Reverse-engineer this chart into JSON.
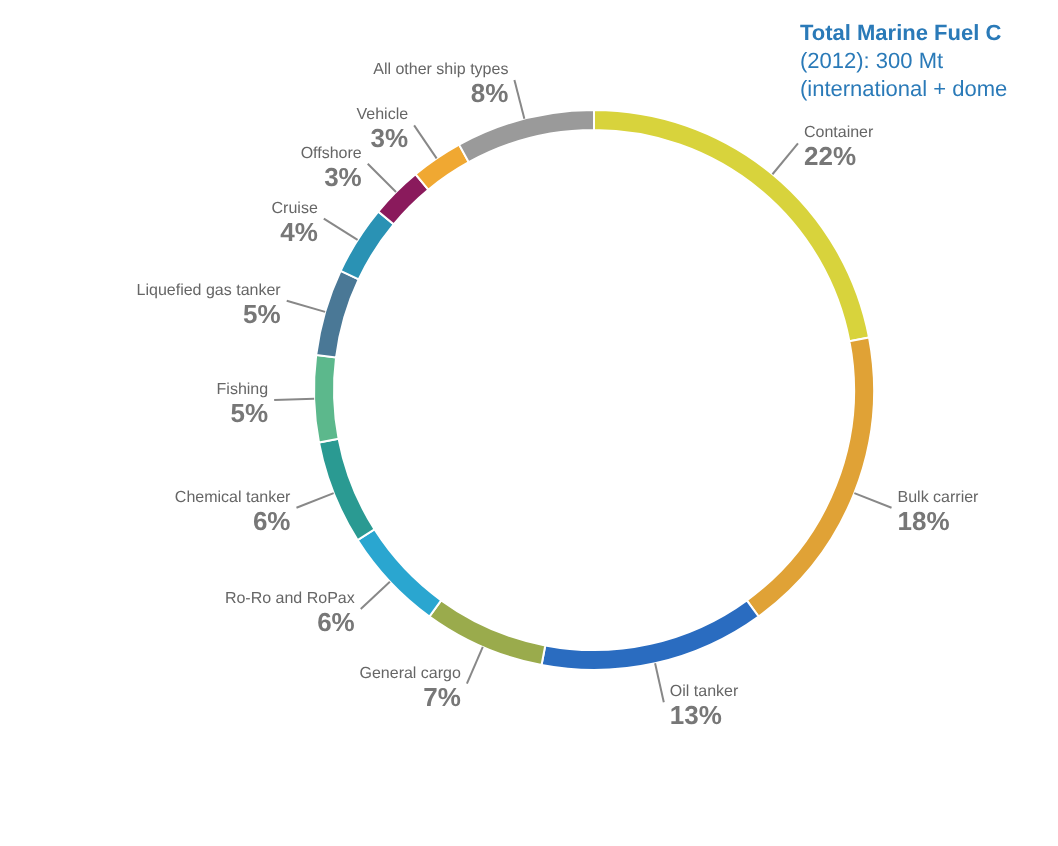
{
  "chart_data": {
    "type": "donut",
    "title": "Total Marine Fuel C",
    "subtitle": "(2012): 300 Mt",
    "annotations": [
      "(international + dome"
    ],
    "categories": [
      "Container",
      "Bulk carrier",
      "Oil tanker",
      "General cargo",
      "Ro-Ro and RoPax",
      "Chemical tanker",
      "Fishing",
      "Liquefied gas tanker",
      "Cruise",
      "Offshore",
      "Vehicle",
      "All other ship types"
    ],
    "values": [
      22,
      18,
      13,
      7,
      6,
      6,
      5,
      5,
      4,
      3,
      3,
      8
    ],
    "value_labels": [
      "22%",
      "18%",
      "13%",
      "7%",
      "6%",
      "6%",
      "5%",
      "5%",
      "4%",
      "3%",
      "3%",
      "8%"
    ],
    "colors": [
      "#d8d33c",
      "#e0a236",
      "#2a6cc0",
      "#9aab4c",
      "#2aa6d0",
      "#2a9a92",
      "#5cb88c",
      "#4a7896",
      "#2a92b4",
      "#8a1a5c",
      "#f0a832",
      "#9a9a9a"
    ]
  }
}
